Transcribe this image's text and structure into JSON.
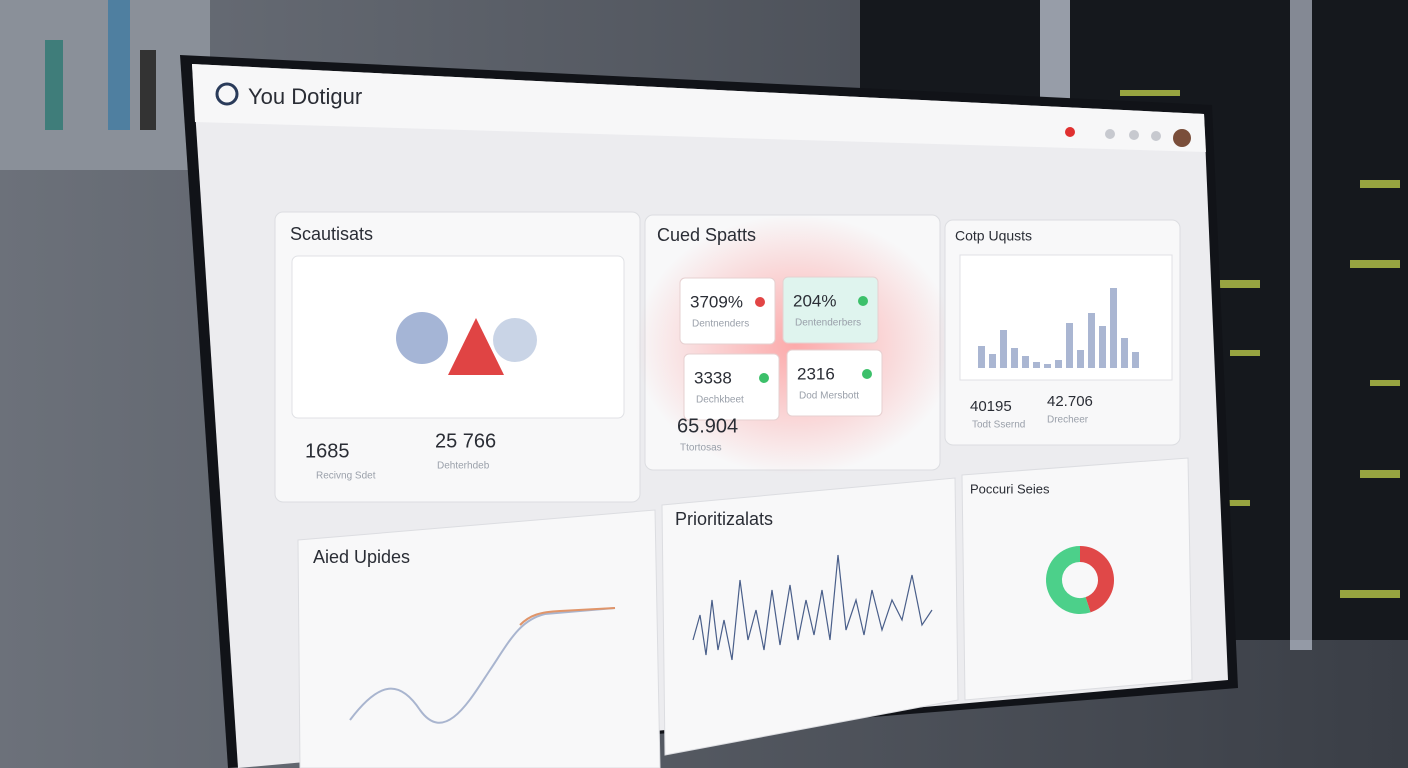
{
  "header": {
    "title": "You Dotigur"
  },
  "panels": [
    {
      "title": "Scautisats",
      "stats": [
        {
          "value": "1685",
          "label": "Recivng Sdet"
        },
        {
          "value": "25 766",
          "label": "Dehterhdeb"
        }
      ]
    },
    {
      "title": "Cued Spatts",
      "cards": [
        {
          "value": "3709%",
          "label": "Dentnenders"
        },
        {
          "value": "204%",
          "label": "Dentenderbers"
        },
        {
          "value": "3338",
          "label": "Dechkbeet"
        },
        {
          "value": "2316",
          "label": "Dod Mersbott"
        }
      ],
      "footer": {
        "value": "65.904",
        "label": "Ttortosas"
      }
    },
    {
      "title": "Cotp Uqusts",
      "stats": [
        {
          "value": "40195",
          "label": "Todt Ssernd"
        },
        {
          "value": "42.706",
          "label": "Drecheer"
        }
      ],
      "bars": [
        22,
        14,
        38,
        20,
        12,
        6,
        4,
        8,
        45,
        18,
        55,
        42,
        80,
        30,
        16
      ]
    },
    {
      "title": "Aied Upides"
    },
    {
      "title": "Prioritizalats"
    },
    {
      "title": "Poccuri Seies",
      "donut": [
        {
          "value": 45,
          "color": "#e04848"
        },
        {
          "value": 55,
          "color": "#4cd08a"
        }
      ]
    }
  ]
}
